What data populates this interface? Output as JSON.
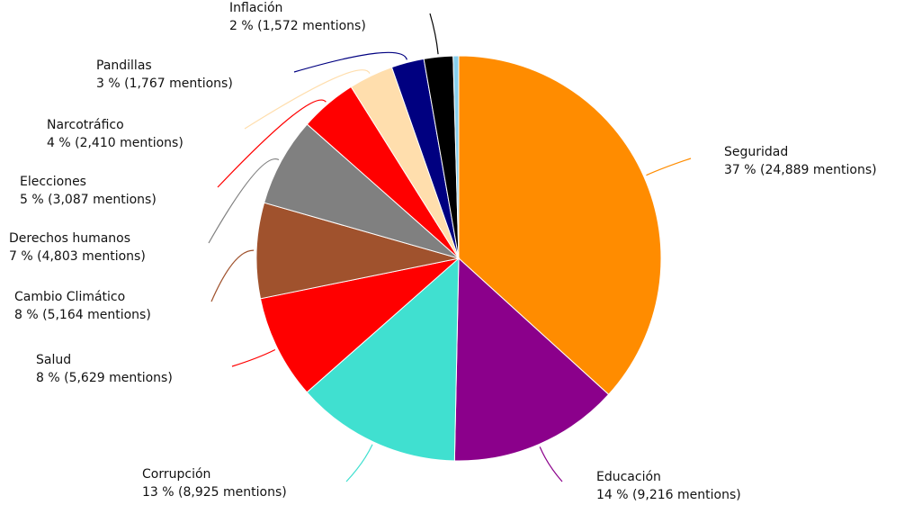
{
  "chart_data": {
    "type": "pie",
    "categories": [
      "Seguridad",
      "Educación",
      "Corrupción",
      "Salud",
      "Cambio Climático",
      "Derechos humanos",
      "Elecciones",
      "Narcotráfico",
      "Pandillas",
      "Inflación",
      null
    ],
    "values": [
      24889,
      9216,
      8925,
      5629,
      5164,
      4803,
      3087,
      2410,
      1767,
      1572,
      300
    ],
    "value_labels": [
      "37 % (24,889 mentions)",
      "14 % (9,216 mentions)",
      "13 % (8,925 mentions)",
      "8 % (5,629 mentions)",
      "8 % (5,164 mentions)",
      "7 % (4,803 mentions)",
      "5 % (3,087 mentions)",
      "4 % (2,410 mentions)",
      "3 % (1,767 mentions)",
      "2 % (1,572 mentions)",
      null
    ],
    "colors": [
      "#ff8c00",
      "#8b008b",
      "#40e0d0",
      "#ff0000",
      "#a0522d",
      "#808080",
      "#ff0000",
      "#ffdead",
      "#000080",
      "#000000",
      "#87ceeb"
    ]
  }
}
